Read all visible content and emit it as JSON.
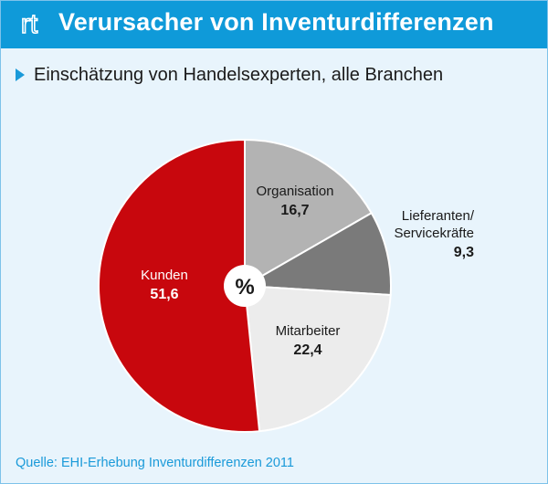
{
  "header": {
    "logo_text": "rt",
    "title": "Verursacher von Inventurdifferenzen"
  },
  "subtitle": "Einschätzung von Handelsexperten, alle Branchen",
  "source": "Quelle: EHI-Erhebung Inventurdifferenzen 2011",
  "colors": {
    "header_bg": "#0f9ad9",
    "background": "#e8f4fc",
    "accent_text": "#1a9ad9"
  },
  "chart_data": {
    "type": "pie",
    "title": "Verursacher von Inventurdifferenzen",
    "center_label": "%",
    "start": "12 o'clock",
    "direction": "clockwise",
    "slices": [
      {
        "label": "Organisation",
        "value_text": "16,7",
        "value": 16.7,
        "color": "#b3b3b3",
        "label_color": "#1a1a1a"
      },
      {
        "label": "Lieferanten/ Servicekräfte",
        "value_text": "9,3",
        "value": 9.3,
        "color": "#7a7a7a",
        "label_color": "#1a1a1a"
      },
      {
        "label": "Mitarbeiter",
        "value_text": "22,4",
        "value": 22.4,
        "color": "#ececec",
        "label_color": "#1a1a1a"
      },
      {
        "label": "Kunden",
        "value_text": "51,6",
        "value": 51.6,
        "color": "#c8070d",
        "label_color": "#ffffff"
      }
    ]
  }
}
